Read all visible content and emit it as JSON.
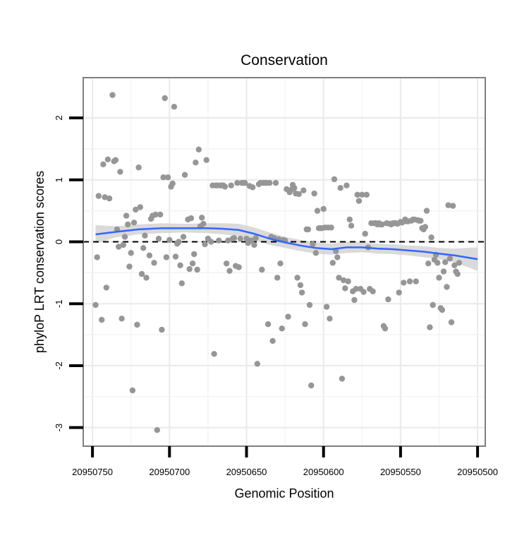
{
  "chart_data": {
    "type": "scatter",
    "title": "Conservation",
    "xlabel": "Genomic Position",
    "ylabel": "phyloP LRT conservation scores",
    "x_reversed": true,
    "xlim": [
      20950756,
      20950495
    ],
    "ylim": [
      -3.3,
      2.65
    ],
    "x_ticks": [
      20950750,
      20950700,
      20950650,
      20950600,
      20950550,
      20950500
    ],
    "x_tick_labels": [
      "20950750",
      "20950700",
      "20950650",
      "20950600",
      "20950550",
      "20950500"
    ],
    "y_ticks": [
      -3,
      -2,
      -1,
      0,
      1,
      2
    ],
    "y_tick_labels": [
      "-3",
      "-2",
      "-1",
      "0",
      "1",
      "2"
    ],
    "grid": true,
    "reference_line": {
      "y": 0,
      "style": "dashed",
      "color": "#000000"
    },
    "colors": {
      "points": "#969696",
      "smooth": "#3366FF",
      "band": "#d3d3d3",
      "panel": "#ffffff",
      "grid": "#ebebeb",
      "border": "#7f7f7f"
    },
    "series": [
      {
        "name": "scores",
        "points": [
          [
            20950748,
            -1.02
          ],
          [
            20950747,
            -0.25
          ],
          [
            20950746,
            0.74
          ],
          [
            20950744,
            -1.26
          ],
          [
            20950743,
            1.25
          ],
          [
            20950742,
            0.72
          ],
          [
            20950741,
            -0.74
          ],
          [
            20950740,
            1.33
          ],
          [
            20950739,
            0.7
          ],
          [
            20950737,
            2.37
          ],
          [
            20950736,
            1.3
          ],
          [
            20950735,
            1.32
          ],
          [
            20950734,
            0.2
          ],
          [
            20950733,
            -0.08
          ],
          [
            20950732,
            1.13
          ],
          [
            20950731,
            -1.24
          ],
          [
            20950730,
            -0.05
          ],
          [
            20950729,
            0.08
          ],
          [
            20950728,
            0.42
          ],
          [
            20950727,
            0.28
          ],
          [
            20950726,
            -0.4
          ],
          [
            20950725,
            -0.18
          ],
          [
            20950724,
            -2.4
          ],
          [
            20950723,
            0.31
          ],
          [
            20950722,
            0.52
          ],
          [
            20950721,
            -1.34
          ],
          [
            20950720,
            1.2
          ],
          [
            20950719,
            0.56
          ],
          [
            20950718,
            -0.52
          ],
          [
            20950717,
            -0.1
          ],
          [
            20950716,
            0.1
          ],
          [
            20950715,
            -0.58
          ],
          [
            20950713,
            -0.22
          ],
          [
            20950712,
            0.37
          ],
          [
            20950711,
            0.42
          ],
          [
            20950710,
            -0.34
          ],
          [
            20950709,
            0.44
          ],
          [
            20950708,
            -3.04
          ],
          [
            20950707,
            0.05
          ],
          [
            20950706,
            0.44
          ],
          [
            20950705,
            -1.42
          ],
          [
            20950704,
            1.04
          ],
          [
            20950703,
            2.32
          ],
          [
            20950702,
            -0.25
          ],
          [
            20950701,
            1.04
          ],
          [
            20950700,
            0.03
          ],
          [
            20950699,
            0.89
          ],
          [
            20950698,
            0.94
          ],
          [
            20950697,
            2.18
          ],
          [
            20950696,
            -0.24
          ],
          [
            20950695,
            -0.03
          ],
          [
            20950694,
            0.0
          ],
          [
            20950693,
            -0.38
          ],
          [
            20950692,
            -0.67
          ],
          [
            20950691,
            0.08
          ],
          [
            20950690,
            1.08
          ],
          [
            20950688,
            0.36
          ],
          [
            20950687,
            -0.44
          ],
          [
            20950686,
            0.38
          ],
          [
            20950685,
            -0.35
          ],
          [
            20950684,
            -0.2
          ],
          [
            20950683,
            1.28
          ],
          [
            20950682,
            -0.45
          ],
          [
            20950681,
            1.49
          ],
          [
            20950680,
            0.25
          ],
          [
            20950679,
            0.39
          ],
          [
            20950678,
            0.29
          ],
          [
            20950677,
            -0.04
          ],
          [
            20950676,
            1.32
          ],
          [
            20950675,
            0.05
          ],
          [
            20950673,
            0.0
          ],
          [
            20950672,
            0.91
          ],
          [
            20950671,
            -1.81
          ],
          [
            20950670,
            0.91
          ],
          [
            20950669,
            0.91
          ],
          [
            20950668,
            0.02
          ],
          [
            20950667,
            0.91
          ],
          [
            20950666,
            0.91
          ],
          [
            20950665,
            0.91
          ],
          [
            20950664,
            0.89
          ],
          [
            20950663,
            -0.35
          ],
          [
            20950662,
            0.02
          ],
          [
            20950661,
            -0.47
          ],
          [
            20950660,
            0.91
          ],
          [
            20950659,
            0.05
          ],
          [
            20950658,
            0.06
          ],
          [
            20950657,
            -0.39
          ],
          [
            20950656,
            0.95
          ],
          [
            20950655,
            -0.41
          ],
          [
            20950654,
            0.05
          ],
          [
            20950653,
            0.95
          ],
          [
            20950652,
            0.95
          ],
          [
            20950651,
            0.95
          ],
          [
            20950650,
            0.05
          ],
          [
            20950649,
            -0.02
          ],
          [
            20950648,
            0.9
          ],
          [
            20950647,
            0.02
          ],
          [
            20950646,
            0.88
          ],
          [
            20950645,
            -0.05
          ],
          [
            20950644,
            0.06
          ],
          [
            20950643,
            -1.97
          ],
          [
            20950642,
            0.93
          ],
          [
            20950641,
            0.95
          ],
          [
            20950640,
            -0.45
          ],
          [
            20950639,
            0.95
          ],
          [
            20950638,
            0.95
          ],
          [
            20950637,
            0.95
          ],
          [
            20950636,
            -1.33
          ],
          [
            20950635,
            0.95
          ],
          [
            20950634,
            0.08
          ],
          [
            20950633,
            -1.6
          ],
          [
            20950632,
            0.06
          ],
          [
            20950631,
            0.95
          ],
          [
            20950630,
            -0.58
          ],
          [
            20950629,
            0.04
          ],
          [
            20950628,
            -0.35
          ],
          [
            20950627,
            -1.4
          ],
          [
            20950626,
            0.03
          ],
          [
            20950625,
            0.02
          ],
          [
            20950624,
            0.85
          ],
          [
            20950623,
            -1.21
          ],
          [
            20950622,
            0.8
          ],
          [
            20950621,
            0.84
          ],
          [
            20950620,
            0.92
          ],
          [
            20950619,
            0.87
          ],
          [
            20950618,
            0.78
          ],
          [
            20950617,
            -0.58
          ],
          [
            20950616,
            0.77
          ],
          [
            20950615,
            -0.7
          ],
          [
            20950614,
            -0.82
          ],
          [
            20950613,
            0.83
          ],
          [
            20950612,
            -1.33
          ],
          [
            20950611,
            0.2
          ],
          [
            20950610,
            0.2
          ],
          [
            20950609,
            -1.02
          ],
          [
            20950608,
            -2.32
          ],
          [
            20950607,
            -0.04
          ],
          [
            20950606,
            0.78
          ],
          [
            20950605,
            -0.18
          ],
          [
            20950604,
            0.5
          ],
          [
            20950603,
            0.22
          ],
          [
            20950602,
            0.22
          ],
          [
            20950601,
            0.22
          ],
          [
            20950600,
            0.53
          ],
          [
            20950599,
            0.23
          ],
          [
            20950598,
            -1.05
          ],
          [
            20950597,
            0.23
          ],
          [
            20950596,
            -1.24
          ],
          [
            20950595,
            0.23
          ],
          [
            20950594,
            -0.34
          ],
          [
            20950593,
            1.01
          ],
          [
            20950592,
            -0.15
          ],
          [
            20950591,
            -0.25
          ],
          [
            20950590,
            -0.58
          ],
          [
            20950589,
            0.87
          ],
          [
            20950588,
            -2.21
          ],
          [
            20950587,
            -0.62
          ],
          [
            20950586,
            -0.75
          ],
          [
            20950585,
            0.91
          ],
          [
            20950584,
            -0.64
          ],
          [
            20950583,
            0.36
          ],
          [
            20950582,
            0.26
          ],
          [
            20950581,
            -0.8
          ],
          [
            20950580,
            -0.94
          ],
          [
            20950579,
            -0.76
          ],
          [
            20950578,
            0.76
          ],
          [
            20950577,
            0.66
          ],
          [
            20950576,
            -0.76
          ],
          [
            20950575,
            0.76
          ],
          [
            20950574,
            -0.81
          ],
          [
            20950573,
            0.13
          ],
          [
            20950572,
            0.76
          ],
          [
            20950571,
            -0.09
          ],
          [
            20950570,
            -0.76
          ],
          [
            20950569,
            0.3
          ],
          [
            20950568,
            -0.8
          ],
          [
            20950567,
            0.3
          ],
          [
            20950566,
            0.3
          ],
          [
            20950565,
            0.28
          ],
          [
            20950564,
            0.3
          ],
          [
            20950563,
            0.28
          ],
          [
            20950562,
            0.28
          ],
          [
            20950561,
            -1.36
          ],
          [
            20950560,
            -1.4
          ],
          [
            20950559,
            0.3
          ],
          [
            20950558,
            -0.93
          ],
          [
            20950557,
            0.29
          ],
          [
            20950556,
            0.28
          ],
          [
            20950555,
            0.3
          ],
          [
            20950554,
            0.3
          ],
          [
            20950553,
            0.3
          ],
          [
            20950552,
            0.29
          ],
          [
            20950551,
            -0.82
          ],
          [
            20950550,
            0.32
          ],
          [
            20950549,
            0.31
          ],
          [
            20950548,
            -0.66
          ],
          [
            20950547,
            0.36
          ],
          [
            20950546,
            0.33
          ],
          [
            20950545,
            0.33
          ],
          [
            20950544,
            -0.64
          ],
          [
            20950543,
            0.34
          ],
          [
            20950542,
            0.36
          ],
          [
            20950541,
            0.36
          ],
          [
            20950540,
            -0.64
          ],
          [
            20950539,
            0.35
          ],
          [
            20950538,
            0.34
          ],
          [
            20950537,
            0.34
          ],
          [
            20950536,
            0.22
          ],
          [
            20950535,
            0.2
          ],
          [
            20950534,
            0.24
          ],
          [
            20950533,
            0.5
          ],
          [
            20950532,
            -0.35
          ],
          [
            20950531,
            -1.38
          ],
          [
            20950530,
            0.07
          ],
          [
            20950529,
            -1.02
          ],
          [
            20950528,
            -0.29
          ],
          [
            20950527,
            -0.21
          ],
          [
            20950526,
            -0.34
          ],
          [
            20950525,
            -0.58
          ],
          [
            20950524,
            -1.07
          ],
          [
            20950523,
            -1.1
          ],
          [
            20950522,
            -0.48
          ],
          [
            20950521,
            -0.33
          ],
          [
            20950520,
            -0.73
          ],
          [
            20950519,
            0.59
          ],
          [
            20950518,
            -0.27
          ],
          [
            20950517,
            -1.3
          ],
          [
            20950516,
            0.58
          ],
          [
            20950515,
            -0.38
          ],
          [
            20950514,
            -0.48
          ],
          [
            20950513,
            -0.52
          ],
          [
            20950512,
            -0.34
          ]
        ]
      }
    ],
    "smooth": {
      "x": [
        20950748,
        20950735,
        20950720,
        20950705,
        20950690,
        20950675,
        20950665,
        20950655,
        20950645,
        20950635,
        20950625,
        20950615,
        20950605,
        20950595,
        20950585,
        20950575,
        20950565,
        20950555,
        20950545,
        20950535,
        20950525,
        20950515,
        20950500
      ],
      "y": [
        0.12,
        0.16,
        0.2,
        0.22,
        0.22,
        0.22,
        0.21,
        0.19,
        0.13,
        0.05,
        -0.01,
        -0.06,
        -0.1,
        -0.12,
        -0.09,
        -0.09,
        -0.11,
        -0.12,
        -0.14,
        -0.16,
        -0.19,
        -0.22,
        -0.28
      ],
      "lower": [
        -0.03,
        0.07,
        0.12,
        0.14,
        0.15,
        0.14,
        0.12,
        0.09,
        0.03,
        -0.05,
        -0.1,
        -0.15,
        -0.19,
        -0.21,
        -0.18,
        -0.17,
        -0.19,
        -0.2,
        -0.22,
        -0.25,
        -0.28,
        -0.33,
        -0.47
      ],
      "upper": [
        0.27,
        0.25,
        0.28,
        0.3,
        0.29,
        0.3,
        0.3,
        0.29,
        0.23,
        0.15,
        0.08,
        0.03,
        -0.01,
        -0.03,
        0.0,
        -0.01,
        -0.03,
        -0.04,
        -0.06,
        -0.07,
        -0.1,
        -0.11,
        -0.09
      ]
    }
  }
}
